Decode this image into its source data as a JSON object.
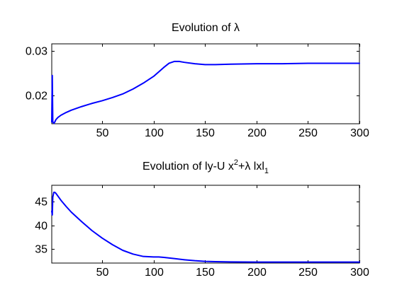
{
  "chart_data": [
    {
      "type": "line",
      "title": {
        "text": "Evolution of ",
        "symbol": "λ"
      },
      "xlim": [
        1,
        300
      ],
      "ylim": [
        0.0138,
        0.0315
      ],
      "xticks": [
        50,
        100,
        150,
        200,
        250,
        300
      ],
      "xtick_labels": [
        "50",
        "100",
        "150",
        "200",
        "250",
        "300"
      ],
      "yticks": [
        0.02,
        0.03
      ],
      "ytick_labels": [
        "0.02",
        "0.03"
      ],
      "grid": false,
      "series": [
        {
          "color": "#0000ff",
          "x": [
            1,
            1.5,
            2,
            3,
            4,
            5,
            7,
            10,
            15,
            20,
            30,
            40,
            50,
            60,
            70,
            80,
            90,
            100,
            105,
            110,
            115,
            120,
            125,
            130,
            140,
            150,
            160,
            175,
            200,
            225,
            250,
            275,
            300
          ],
          "y": [
            0.0142,
            0.0245,
            0.0142,
            0.0139,
            0.0142,
            0.0147,
            0.0152,
            0.0157,
            0.0163,
            0.0168,
            0.0176,
            0.0183,
            0.0189,
            0.0196,
            0.0204,
            0.0215,
            0.0228,
            0.0243,
            0.0253,
            0.0263,
            0.0272,
            0.0276,
            0.0276,
            0.0274,
            0.0271,
            0.0269,
            0.0269,
            0.027,
            0.0271,
            0.0271,
            0.0272,
            0.0272,
            0.0272
          ]
        }
      ]
    },
    {
      "type": "line",
      "title": {
        "text": "Evolution of ly-U x",
        "sup": "2",
        "middle": "+λ lxl",
        "sub": "1"
      },
      "xlim": [
        1,
        300
      ],
      "ylim": [
        32,
        48.5
      ],
      "xticks": [
        50,
        100,
        150,
        200,
        250,
        300
      ],
      "xtick_labels": [
        "50",
        "100",
        "150",
        "200",
        "250",
        "300"
      ],
      "yticks": [
        35,
        40,
        45
      ],
      "ytick_labels": [
        "35",
        "40",
        "45"
      ],
      "grid": false,
      "series": [
        {
          "color": "#0000ff",
          "x": [
            1,
            1.5,
            2,
            3,
            4,
            5,
            7,
            10,
            15,
            20,
            30,
            40,
            50,
            60,
            70,
            80,
            90,
            100,
            105,
            110,
            120,
            130,
            140,
            150,
            160,
            175,
            200,
            250,
            300
          ],
          "y": [
            43.0,
            42.2,
            46.0,
            47.0,
            47.0,
            46.8,
            46.2,
            45.3,
            44.0,
            42.8,
            40.8,
            38.9,
            37.3,
            35.9,
            34.7,
            33.9,
            33.4,
            33.3,
            33.3,
            33.2,
            32.95,
            32.7,
            32.5,
            32.35,
            32.3,
            32.25,
            32.2,
            32.2,
            32.2
          ]
        }
      ]
    }
  ]
}
